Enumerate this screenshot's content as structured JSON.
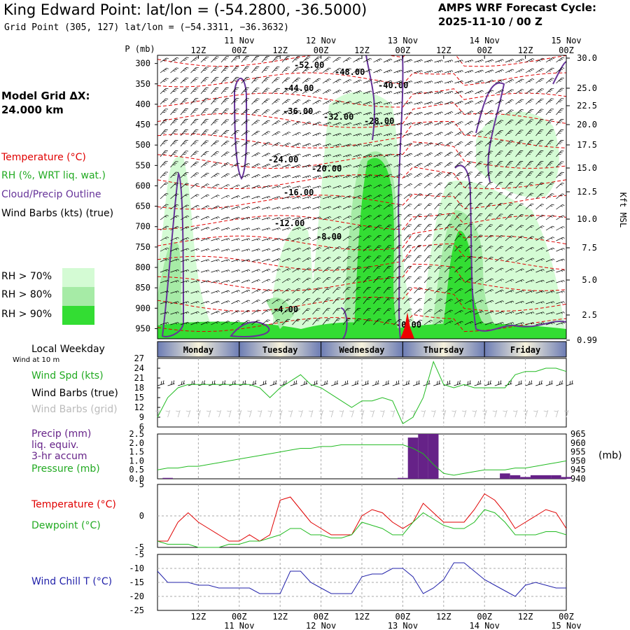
{
  "header": {
    "title": "King Edward Point:  lat/lon = (-54.2800, -36.5000)",
    "grid_point": "Grid Point (305, 127) lat/lon = (−54.3311, −36.3632)",
    "cycle_line1": "AMPS WRF Forecast Cycle:",
    "cycle_line2": "2025-11-10 / 00  Z"
  },
  "legend": {
    "model_grid_1": "Model Grid ΔX:",
    "model_grid_2": " 24.000 km",
    "temperature": "Temperature (°C)",
    "rh": "RH (%, WRT liq. wat.)",
    "cloud": "Cloud/Precip Outline",
    "wind_barbs": "Wind Barbs (kts) (true)",
    "rh70": "RH > 70%",
    "rh80": "RH > 80%",
    "rh90": "RH > 90%",
    "colors": {
      "rh70": "#d4fbd4",
      "rh80": "#a6eba6",
      "rh90": "#33dd33",
      "temp": "#e00000",
      "cloud": "#663399",
      "wind": "#22bb22",
      "precip": "#662288",
      "dew": "#22bb22",
      "chill": "#2222aa"
    }
  },
  "time_axis": {
    "top_labels": [
      "12Z",
      "00Z",
      "12Z",
      "00Z",
      "12Z",
      "00Z",
      "12Z",
      "00Z",
      "12Z",
      "00Z"
    ],
    "dates": [
      "11 Nov",
      "12 Nov",
      "13 Nov",
      "14 Nov",
      "15 Nov"
    ],
    "days": [
      "Monday",
      "Tuesday",
      "Wednesday",
      "Thursday",
      "Friday"
    ]
  },
  "cross_section": {
    "p_label": "P (mb)",
    "p_ticks": [
      "300",
      "350",
      "400",
      "450",
      "500",
      "550",
      "600",
      "650",
      "700",
      "750",
      "800",
      "850",
      "900",
      "950"
    ],
    "kft_ticks": [
      "30.0",
      "25.0",
      "22.5",
      "20.0",
      "17.5",
      "15.0",
      "12.5",
      "10.0",
      "7.5",
      "5.0",
      "2.5",
      "0.99"
    ],
    "kft_label": "Kft MSL",
    "temp_labels": [
      "-52.00",
      "-48.00",
      "-44.00",
      "-40.00",
      "-36.00",
      "-32.00",
      "-28.00",
      "-24.00",
      "-20.00",
      "-16.00",
      "-12.00",
      "-8.00",
      "-4.00",
      "-0.00"
    ]
  },
  "wind_panel": {
    "weekday_label": "Local Weekday",
    "wind10": "Wind at 10 m",
    "spd_label": "Wind Spd (kts)",
    "barbs_true": "Wind Barbs (true)",
    "barbs_grid": "Wind Barbs (grid)",
    "y_ticks": [
      "27",
      "24",
      "21",
      "18",
      "15",
      "12",
      "9",
      "6"
    ]
  },
  "precip_panel": {
    "label1": "Precip (mm)",
    "label2": "liq. equiv.",
    "label3": "3-hr accum",
    "label4": "Pressure (mb)",
    "y_ticks": [
      "2.5",
      "2.0",
      "1.5",
      "1.0",
      "0.5",
      "0.0"
    ],
    "p_ticks": [
      "965",
      "960",
      "955",
      "950",
      "945",
      "940"
    ],
    "unit": "(mb)"
  },
  "temp_panel": {
    "label_t": "Temperature (°C)",
    "label_d": "Dewpoint (°C)",
    "y_ticks": [
      "5",
      "0",
      "-5"
    ]
  },
  "chill_panel": {
    "label": "Wind Chill T (°C)",
    "y_ticks": [
      "-5",
      "-10",
      "-15",
      "-20",
      "-25"
    ]
  },
  "chart_data": [
    {
      "type": "line",
      "name": "Wind Spd (kts)",
      "x_hours": [
        0,
        3,
        6,
        9,
        12,
        15,
        18,
        21,
        24,
        27,
        30,
        33,
        36,
        39,
        42,
        45,
        48,
        51,
        54,
        57,
        60,
        63,
        66,
        69,
        72,
        75,
        78,
        81,
        84,
        87,
        90,
        93,
        96,
        99,
        102,
        105,
        108,
        111,
        114,
        117,
        120
      ],
      "values": [
        9,
        15,
        18,
        19,
        19,
        19,
        19,
        19,
        19,
        19,
        18,
        15,
        18,
        20,
        22,
        19,
        18,
        16,
        14,
        12,
        14,
        14,
        15,
        14,
        7,
        9,
        15,
        26,
        19,
        18,
        19,
        18,
        18,
        18,
        18,
        22,
        23,
        23,
        24,
        24,
        23
      ],
      "ylim": [
        6,
        27
      ]
    },
    {
      "type": "bar+line",
      "precip_mm": [
        0,
        0.05,
        0,
        0,
        0,
        0,
        0,
        0,
        0,
        0,
        0,
        0,
        0,
        0,
        0,
        0,
        0,
        0,
        0,
        0,
        0,
        0,
        0,
        0,
        0.05,
        2.3,
        2.5,
        2.5,
        0,
        0,
        0,
        0,
        0,
        0,
        0.3,
        0.2,
        0.1,
        0.2,
        0.2,
        0.2,
        0.1
      ],
      "pressure_mb": [
        945,
        946,
        946,
        947,
        947,
        948,
        949,
        950,
        951,
        952,
        953,
        954,
        955,
        956,
        957,
        957,
        958,
        958,
        959,
        959,
        959,
        959,
        959,
        959,
        959,
        957,
        954,
        948,
        943,
        942,
        943,
        944,
        945,
        945,
        945,
        946,
        946,
        947,
        948,
        949,
        950
      ],
      "precip_ylim": [
        0,
        2.5
      ],
      "pressure_ylim": [
        940,
        965
      ]
    },
    {
      "type": "line",
      "name": "Temperature",
      "values": [
        -4,
        -4,
        -1,
        0.5,
        -1,
        -2,
        -3,
        -4,
        -4,
        -3,
        -4,
        -3,
        2.5,
        3,
        1,
        -1,
        -2,
        -3,
        -3,
        -3,
        0,
        1,
        0.5,
        -1,
        -2,
        -1,
        2,
        0.5,
        -1,
        -1,
        -1,
        1,
        3.5,
        2.5,
        0.5,
        -2,
        -1,
        0,
        1,
        0.5,
        -2
      ],
      "dewpoint": [
        -4,
        -4.5,
        -4.5,
        -4.5,
        -5,
        -5,
        -5,
        -4.5,
        -4.5,
        -4,
        -4,
        -3.5,
        -3,
        -2,
        -2,
        -3,
        -3,
        -3.5,
        -3.5,
        -3,
        -1,
        -1.5,
        -2,
        -3,
        -3,
        -1,
        0.5,
        -0.5,
        -1.5,
        -2,
        -2,
        -1,
        1,
        0.5,
        -1,
        -3,
        -3,
        -3,
        -2.5,
        -2.5,
        -3
      ],
      "ylim": [
        -5,
        5
      ]
    },
    {
      "type": "line",
      "name": "Wind Chill T",
      "values": [
        -11,
        -15,
        -15,
        -15,
        -16,
        -16,
        -17,
        -17,
        -17,
        -17,
        -19,
        -19,
        -19,
        -11,
        -11,
        -15,
        -17,
        -19,
        -19,
        -19,
        -13,
        -12,
        -12,
        -10,
        -10,
        -13,
        -19,
        -17,
        -14,
        -8,
        -8,
        -11,
        -14,
        -16,
        -18,
        -20,
        -16,
        -15,
        -16,
        -17,
        -17
      ],
      "ylim": [
        -25,
        -5
      ]
    }
  ]
}
